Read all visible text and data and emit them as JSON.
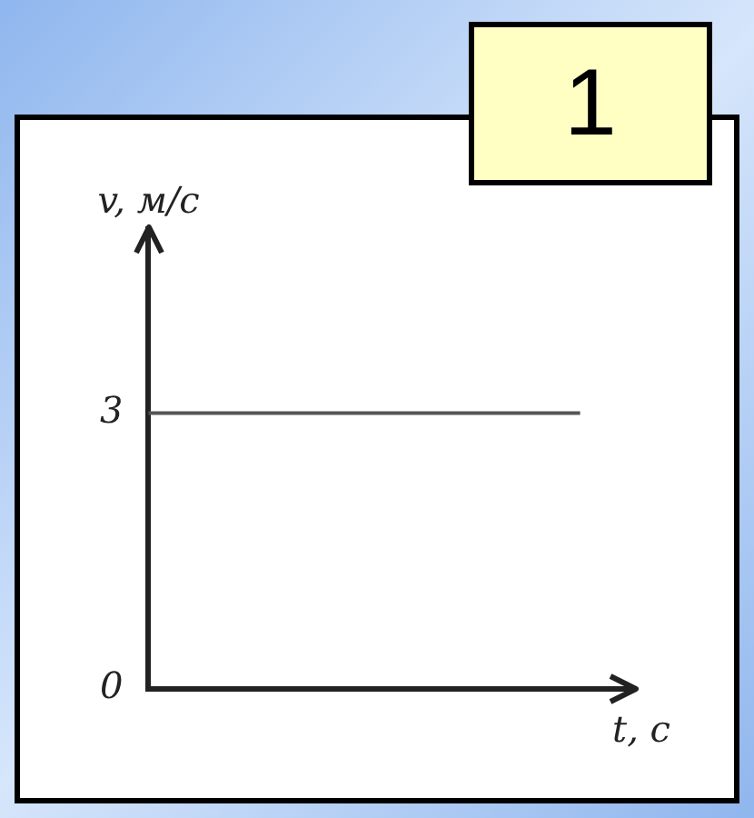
{
  "chart_data": {
    "type": "line",
    "ylabel": "v, м/с",
    "xlabel": "t, с",
    "annotations": [
      "1"
    ],
    "categories": [
      null,
      null,
      null,
      null,
      null,
      null,
      null,
      null,
      null,
      null
    ],
    "series": [
      {
        "color": "#555555",
        "values": [
          3,
          3,
          3,
          3,
          3,
          3,
          3,
          3,
          3,
          null
        ]
      }
    ],
    "ylim": [
      0,
      5
    ],
    "yticks": [
      0,
      3
    ],
    "tick_labels": "y",
    "grid": false,
    "legend": false,
    "marker": "none",
    "line_style": "solid"
  }
}
